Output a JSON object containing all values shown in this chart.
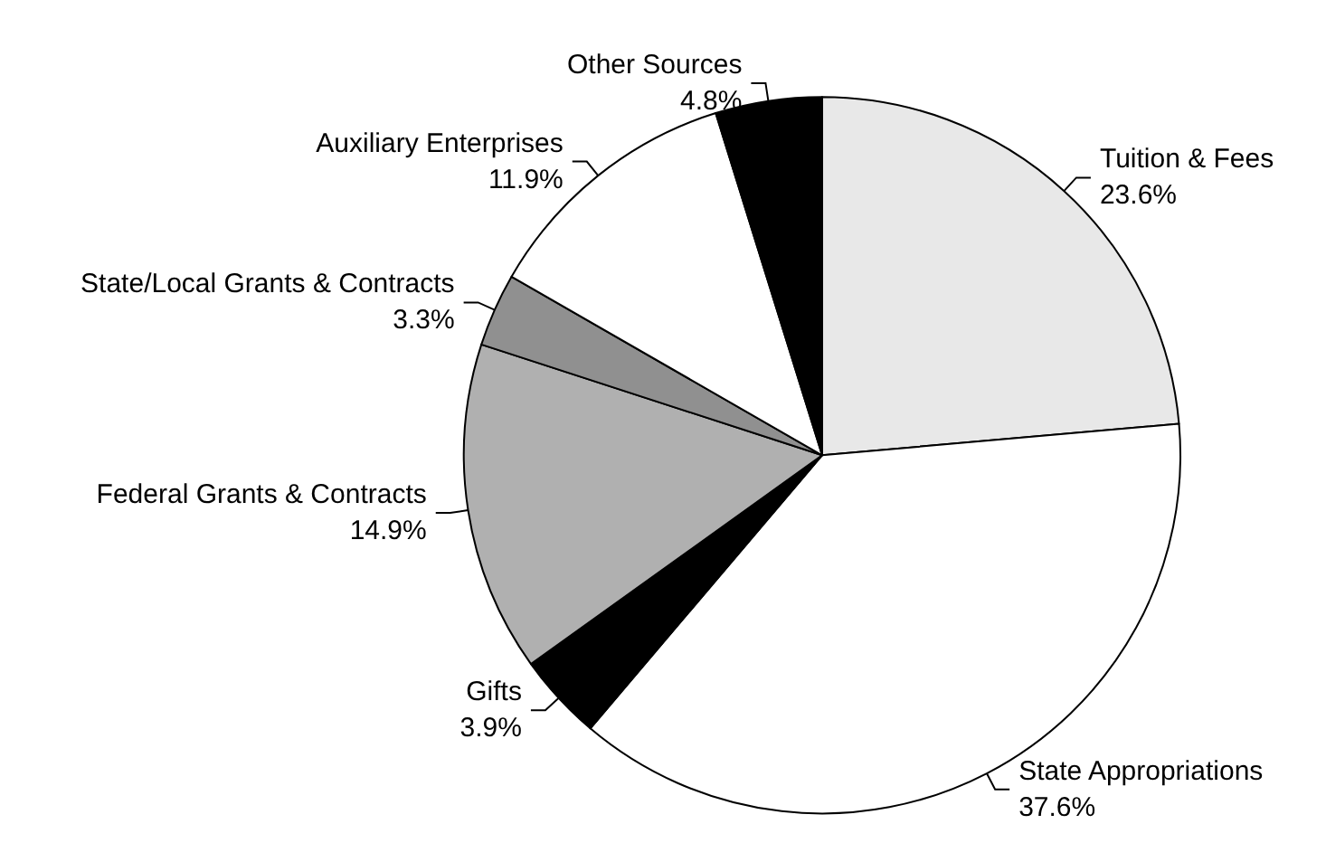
{
  "chart_data": {
    "type": "pie",
    "categories": [
      "Tuition & Fees",
      "State Appropriations",
      "Gifts",
      "Federal Grants & Contracts",
      "State/Local Grants & Contracts",
      "Auxiliary Enterprises",
      "Other Sources"
    ],
    "values": [
      23.6,
      37.6,
      3.9,
      14.9,
      3.3,
      11.9,
      4.8
    ],
    "colors": [
      "#e8e8e8",
      "#ffffff",
      "#000000",
      "#b0b0b0",
      "#909090",
      "#ffffff",
      "#000000"
    ],
    "value_labels": [
      "23.6%",
      "37.6%",
      "3.9%",
      "14.9%",
      "3.3%",
      "11.9%",
      "4.8%"
    ],
    "legend": false
  }
}
